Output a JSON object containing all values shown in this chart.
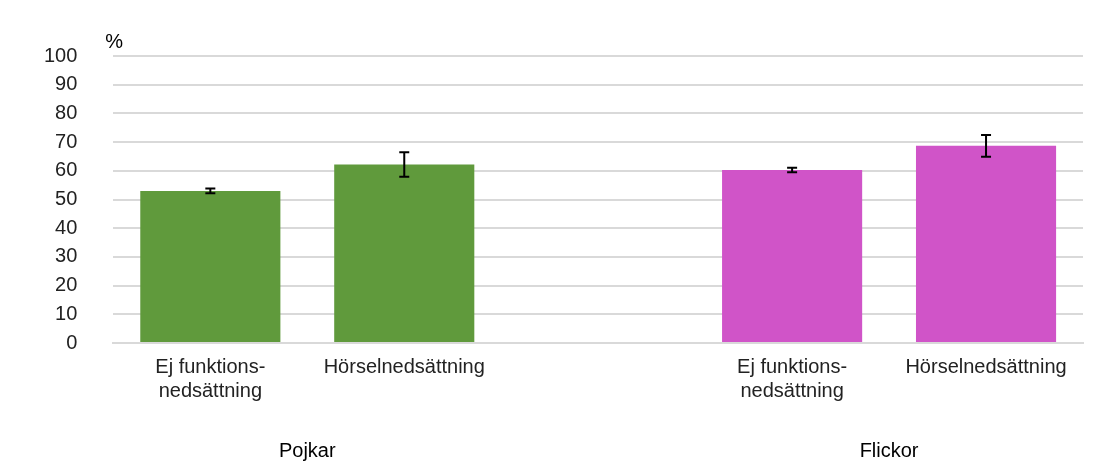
{
  "chart_data": {
    "type": "bar",
    "ylabel": "%",
    "categories": [
      "Ej funktions-\nnedsättning",
      "Hörselnedsättning",
      null,
      "Ej funktions-\nnedsättning",
      "Hörselnedsättning"
    ],
    "values": [
      53,
      62.2,
      null,
      60.3,
      68.7
    ],
    "errors": [
      0.8,
      4.3,
      null,
      0.8,
      3.8
    ],
    "colors": [
      "#609a3c",
      "#609a3c",
      null,
      "#d054c8",
      "#d054c8"
    ],
    "ylim": [
      0,
      100
    ],
    "yticks": [
      0,
      10,
      20,
      30,
      40,
      50,
      60,
      70,
      80,
      90,
      100
    ],
    "grid": "y",
    "legend": false,
    "annotations": [
      "Pojkar",
      "Flickor"
    ]
  }
}
